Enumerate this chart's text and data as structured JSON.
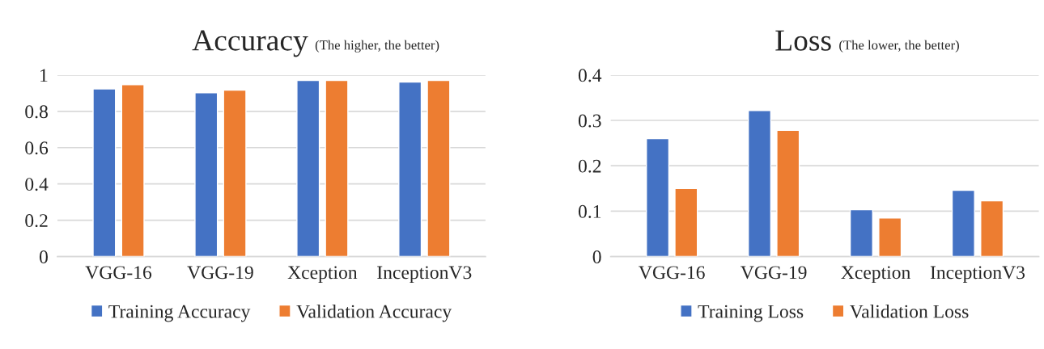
{
  "chart_data": [
    {
      "type": "bar",
      "title": "Accuracy",
      "subtitle": "(The higher, the better)",
      "categories": [
        "VGG-16",
        "VGG-19",
        "Xception",
        "InceptionV3"
      ],
      "series": [
        {
          "name": "Training Accuracy",
          "color": "#4472c4",
          "values": [
            0.924,
            0.902,
            0.97,
            0.961
          ]
        },
        {
          "name": "Validation Accuracy",
          "color": "#ed7d31",
          "values": [
            0.947,
            0.917,
            0.97,
            0.97
          ]
        }
      ],
      "ylim": [
        0,
        1
      ],
      "yticks": [
        0,
        0.2,
        0.4,
        0.6,
        0.8,
        1
      ],
      "grid": "y",
      "legend": "bottom"
    },
    {
      "type": "bar",
      "title": "Loss",
      "subtitle": "(The lower, the better)",
      "categories": [
        "VGG-16",
        "VGG-19",
        "Xception",
        "InceptionV3"
      ],
      "series": [
        {
          "name": "Training Loss",
          "color": "#4472c4",
          "values": [
            0.26,
            0.322,
            0.103,
            0.146
          ]
        },
        {
          "name": "Validation Loss",
          "color": "#ed7d31",
          "values": [
            0.15,
            0.278,
            0.085,
            0.123
          ]
        }
      ],
      "ylim": [
        0,
        0.4
      ],
      "yticks": [
        0,
        0.1,
        0.2,
        0.3,
        0.4
      ],
      "grid": "y",
      "legend": "bottom"
    }
  ]
}
